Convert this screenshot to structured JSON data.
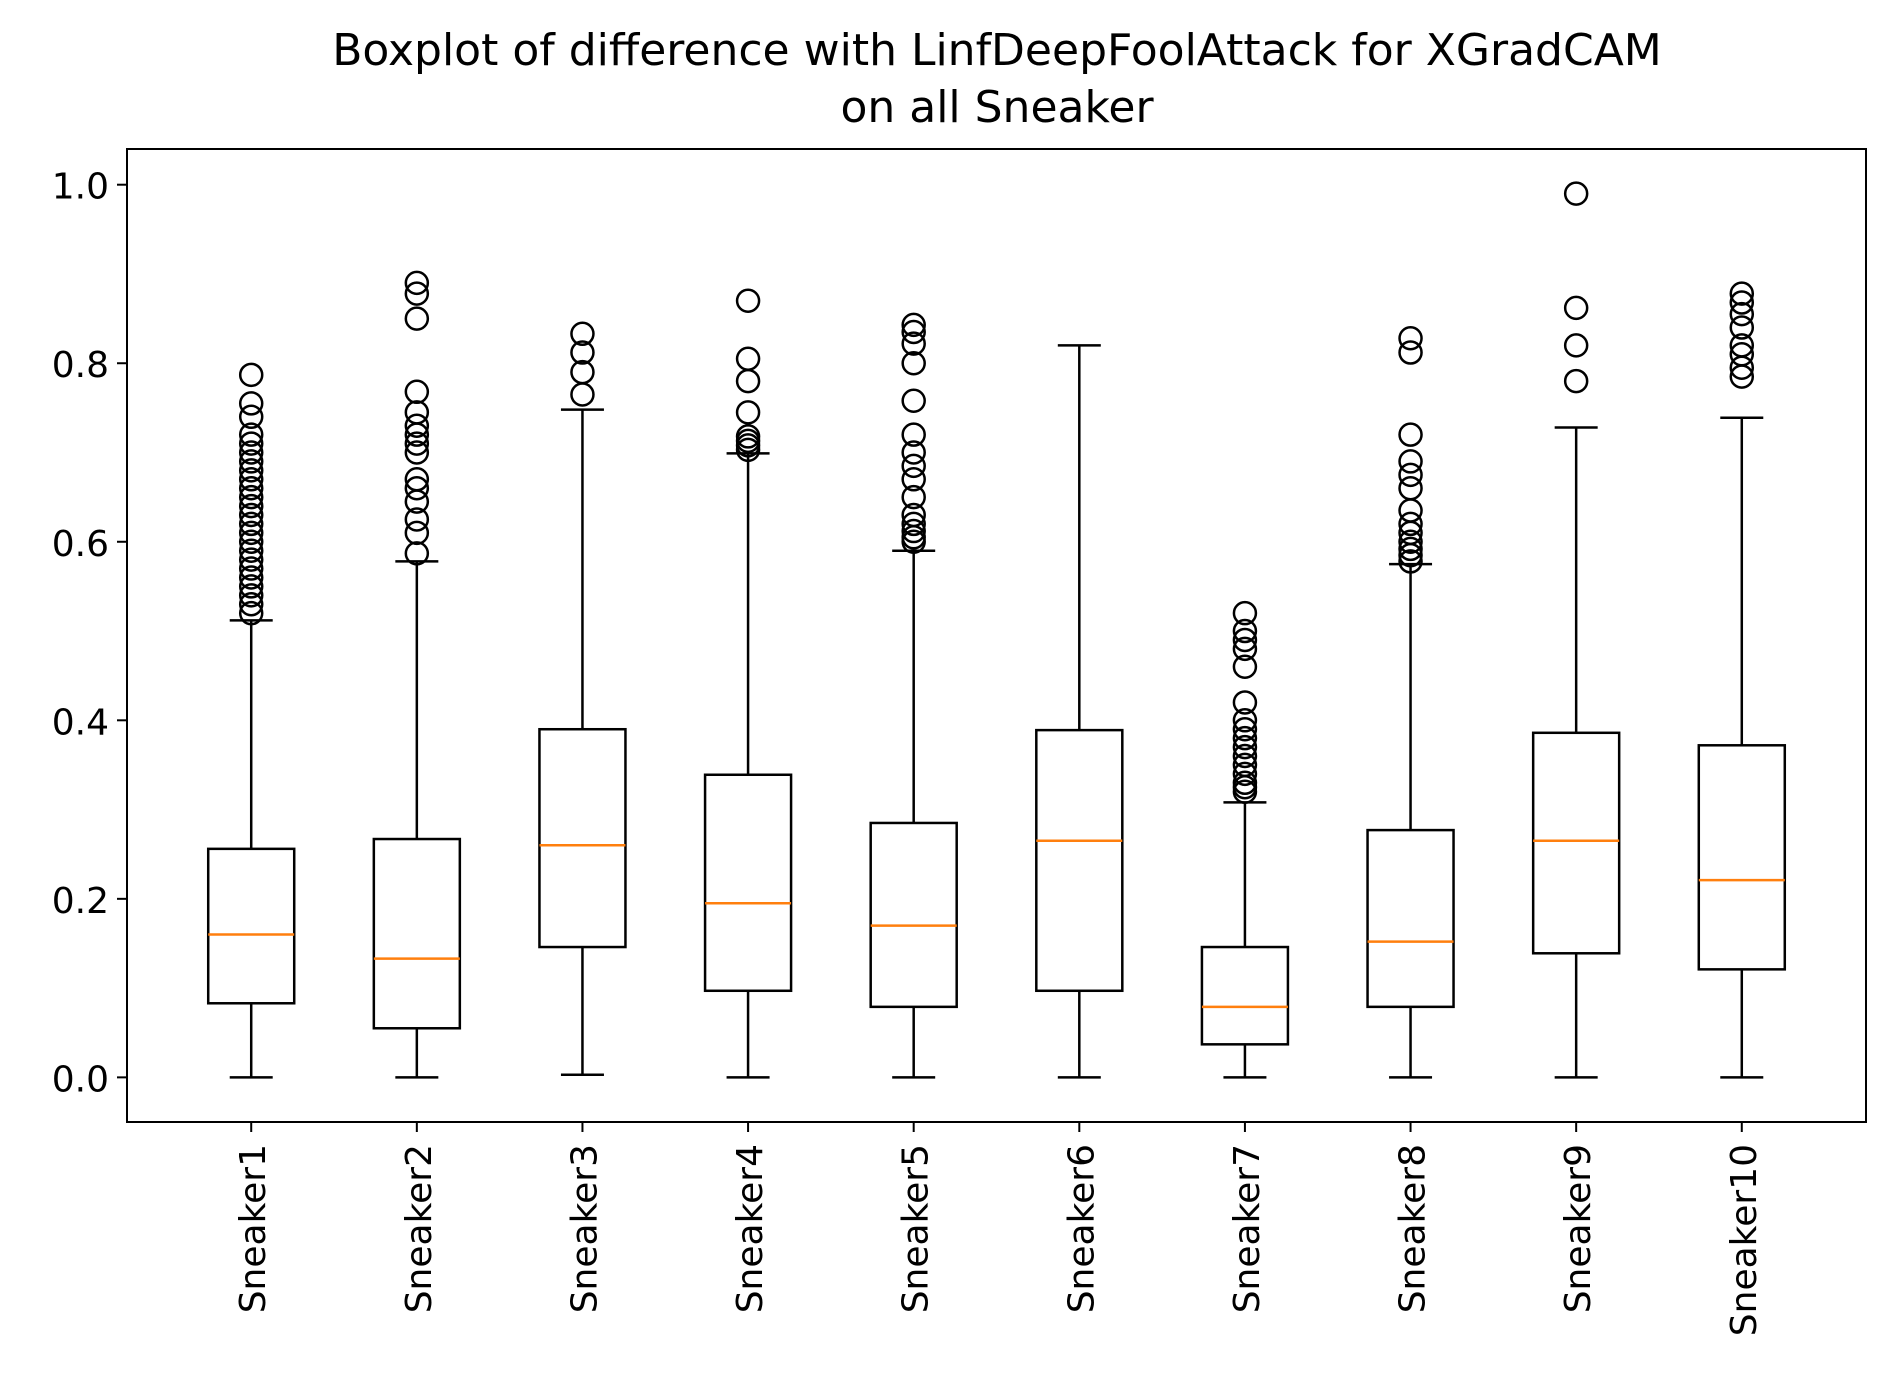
{
  "chart_data": {
    "type": "boxplot",
    "title": [
      "Boxplot of difference with LinfDeepFoolAttack for XGradCAM",
      "on all Sneaker"
    ],
    "xlabel": "",
    "ylabel": "",
    "ylim": [
      -0.05,
      1.04
    ],
    "yticks": [
      0.0,
      0.2,
      0.4,
      0.6,
      0.8,
      1.0
    ],
    "ytick_labels": [
      "0.0",
      "0.2",
      "0.4",
      "0.6",
      "0.8",
      "1.0"
    ],
    "grid": false,
    "categories": [
      "Sneaker1",
      "Sneaker2",
      "Sneaker3",
      "Sneaker4",
      "Sneaker5",
      "Sneaker6",
      "Sneaker7",
      "Sneaker8",
      "Sneaker9",
      "Sneaker10"
    ],
    "boxes": [
      {
        "name": "Sneaker1",
        "whislo": 0.0,
        "q1": 0.083,
        "med": 0.16,
        "q3": 0.256,
        "whishi": 0.512,
        "fliers": [
          0.52,
          0.53,
          0.54,
          0.55,
          0.56,
          0.57,
          0.58,
          0.59,
          0.6,
          0.61,
          0.62,
          0.63,
          0.64,
          0.65,
          0.66,
          0.67,
          0.68,
          0.69,
          0.7,
          0.71,
          0.72,
          0.74,
          0.755,
          0.787
        ]
      },
      {
        "name": "Sneaker2",
        "whislo": 0.0,
        "q1": 0.055,
        "med": 0.133,
        "q3": 0.267,
        "whishi": 0.578,
        "fliers": [
          0.587,
          0.61,
          0.625,
          0.645,
          0.66,
          0.67,
          0.7,
          0.71,
          0.72,
          0.73,
          0.745,
          0.768,
          0.85,
          0.878,
          0.89
        ]
      },
      {
        "name": "Sneaker3",
        "whislo": 0.003,
        "q1": 0.146,
        "med": 0.26,
        "q3": 0.39,
        "whishi": 0.748,
        "fliers": [
          0.765,
          0.79,
          0.812,
          0.833
        ]
      },
      {
        "name": "Sneaker4",
        "whislo": 0.0,
        "q1": 0.097,
        "med": 0.195,
        "q3": 0.339,
        "whishi": 0.699,
        "fliers": [
          0.703,
          0.708,
          0.713,
          0.718,
          0.745,
          0.78,
          0.805,
          0.87
        ]
      },
      {
        "name": "Sneaker5",
        "whislo": 0.0,
        "q1": 0.079,
        "med": 0.17,
        "q3": 0.285,
        "whishi": 0.59,
        "fliers": [
          0.6,
          0.605,
          0.612,
          0.62,
          0.63,
          0.65,
          0.67,
          0.685,
          0.7,
          0.72,
          0.758,
          0.8,
          0.822,
          0.835,
          0.843
        ]
      },
      {
        "name": "Sneaker6",
        "whislo": 0.0,
        "q1": 0.097,
        "med": 0.265,
        "q3": 0.389,
        "whishi": 0.82,
        "fliers": []
      },
      {
        "name": "Sneaker7",
        "whislo": 0.0,
        "q1": 0.037,
        "med": 0.079,
        "q3": 0.146,
        "whishi": 0.308,
        "fliers": [
          0.32,
          0.325,
          0.33,
          0.34,
          0.35,
          0.36,
          0.37,
          0.38,
          0.39,
          0.4,
          0.42,
          0.46,
          0.48,
          0.49,
          0.5,
          0.52
        ]
      },
      {
        "name": "Sneaker8",
        "whislo": 0.0,
        "q1": 0.079,
        "med": 0.152,
        "q3": 0.277,
        "whishi": 0.575,
        "fliers": [
          0.578,
          0.585,
          0.592,
          0.6,
          0.61,
          0.62,
          0.635,
          0.66,
          0.675,
          0.69,
          0.72,
          0.812,
          0.828
        ]
      },
      {
        "name": "Sneaker9",
        "whislo": 0.0,
        "q1": 0.139,
        "med": 0.265,
        "q3": 0.386,
        "whishi": 0.728,
        "fliers": [
          0.78,
          0.82,
          0.862,
          0.99
        ]
      },
      {
        "name": "Sneaker10",
        "whislo": 0.0,
        "q1": 0.121,
        "med": 0.221,
        "q3": 0.372,
        "whishi": 0.739,
        "fliers": [
          0.785,
          0.795,
          0.81,
          0.82,
          0.84,
          0.855,
          0.868,
          0.878
        ]
      }
    ],
    "colors": {
      "box": "#000000",
      "median": "#ff7f0e",
      "flier": "#000000",
      "background": "#ffffff"
    }
  }
}
